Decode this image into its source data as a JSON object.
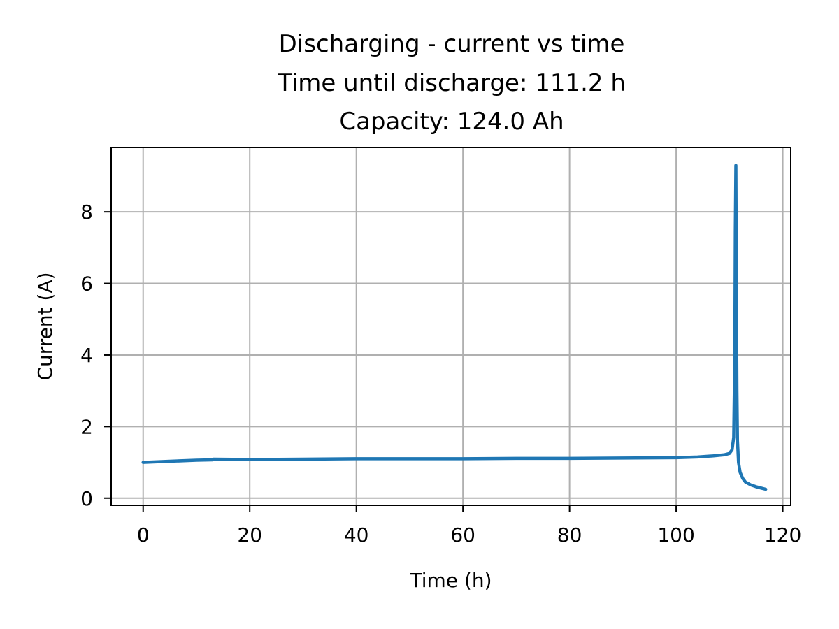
{
  "chart_data": {
    "type": "line",
    "title_lines": [
      "Discharging - current vs time",
      "Time until discharge: 111.2 h",
      "Capacity: 124.0 Ah"
    ],
    "xlabel": "Time (h)",
    "ylabel": "Current (A)",
    "xlim": [
      -6,
      121.5
    ],
    "ylim": [
      -0.2,
      9.8
    ],
    "xticks": [
      0,
      20,
      40,
      60,
      80,
      100,
      120
    ],
    "yticks": [
      0,
      2,
      4,
      6,
      8
    ],
    "grid": true,
    "series": [
      {
        "color": "#1f77b4",
        "x": [
          0,
          5,
          10,
          13,
          13.2,
          20,
          30,
          40,
          50,
          60,
          70,
          80,
          90,
          100,
          104,
          107,
          109,
          110,
          110.5,
          110.8,
          111.0,
          111.1,
          111.2,
          111.3,
          111.4,
          111.5,
          111.7,
          112.0,
          112.5,
          113,
          114,
          115,
          116,
          116.8
        ],
        "y": [
          1.0,
          1.03,
          1.06,
          1.07,
          1.09,
          1.08,
          1.09,
          1.1,
          1.1,
          1.1,
          1.11,
          1.11,
          1.12,
          1.13,
          1.15,
          1.18,
          1.21,
          1.25,
          1.35,
          1.7,
          4.0,
          7.5,
          9.3,
          6.0,
          3.0,
          1.6,
          1.0,
          0.72,
          0.55,
          0.45,
          0.37,
          0.32,
          0.28,
          0.25
        ]
      }
    ]
  }
}
